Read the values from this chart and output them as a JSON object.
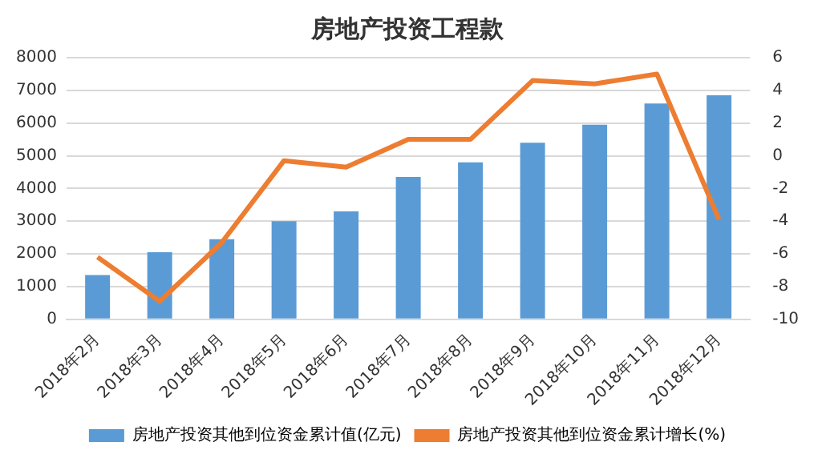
{
  "chart_data": {
    "type": "bar",
    "title": "房地产投资工程款",
    "categories": [
      "2018年2月",
      "2018年3月",
      "2018年4月",
      "2018年5月",
      "2018年6月",
      "2018年7月",
      "2018年8月",
      "2018年9月",
      "2018年10月",
      "2018年11月",
      "2018年12月"
    ],
    "series": [
      {
        "name": "房地产投资其他到位资金累计值(亿元)",
        "color": "#5b9bd5",
        "values": [
          1350,
          2050,
          2450,
          3000,
          3300,
          4350,
          4800,
          5400,
          5950,
          6600,
          6850
        ]
      },
      {
        "name": "房地产投资其他到位资金累计增长(%)",
        "type": "line",
        "axis": "y2",
        "color": "#ed7d31",
        "values": [
          -6.2,
          -8.9,
          -5.3,
          -0.3,
          -0.7,
          1.0,
          1.0,
          4.6,
          4.4,
          5.0,
          -3.9
        ]
      }
    ],
    "ylim": [
      0,
      8000
    ],
    "yticks": [
      0,
      1000,
      2000,
      3000,
      4000,
      5000,
      6000,
      7000,
      8000
    ],
    "y2lim": [
      -10,
      6
    ],
    "y2ticks": [
      -10,
      -8,
      -6,
      -4,
      -2,
      0,
      2,
      4,
      6
    ],
    "grid": "y",
    "legend": "bottom",
    "marker": "none",
    "line_style": "solid"
  }
}
